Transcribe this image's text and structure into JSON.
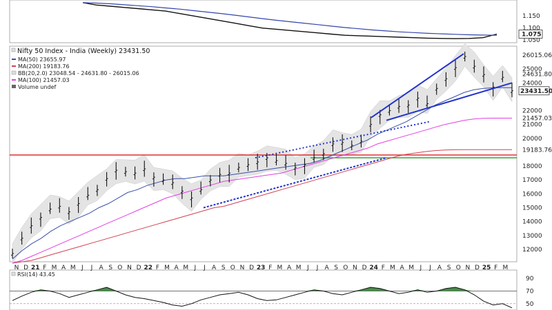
{
  "chart_data": [
    {
      "type": "line",
      "panel": "ratio",
      "title": "",
      "series": [
        {
          "name": "",
          "color": "#111111",
          "values": [
            1.205,
            1.195,
            1.19,
            1.185,
            1.18,
            1.175,
            1.17,
            1.16,
            1.15,
            1.14,
            1.13,
            1.12,
            1.11,
            1.1,
            1.095,
            1.09,
            1.085,
            1.08,
            1.075,
            1.07,
            1.068,
            1.066,
            1.064,
            1.062,
            1.06,
            1.058,
            1.057,
            1.056,
            1.057,
            1.06,
            1.075
          ]
        },
        {
          "name": "",
          "color": "#3344aa",
          "values": [
            1.205,
            1.203,
            1.2,
            1.196,
            1.192,
            1.188,
            1.183,
            1.178,
            1.172,
            1.166,
            1.16,
            1.153,
            1.146,
            1.139,
            1.132,
            1.126,
            1.12,
            1.114,
            1.108,
            1.102,
            1.097,
            1.092,
            1.088,
            1.084,
            1.081,
            1.078,
            1.076,
            1.074,
            1.072,
            1.071,
            1.07
          ]
        }
      ],
      "yticks": [
        "1.150",
        "1.100",
        "1.050"
      ],
      "ylim": [
        1.045,
        1.21
      ],
      "last_value": "1.075"
    },
    {
      "type": "line",
      "panel": "price",
      "title": "Nifty 50 Index - India (Weekly) 23431.50",
      "legend": [
        {
          "label": "MA(50) 23655.97",
          "color": "#3a4fa8"
        },
        {
          "label": "MA(200) 19183.76",
          "color": "#d04050"
        },
        {
          "label": "BB(20,2.0) 23048.54 - 24631.80 - 26015.06",
          "color": "#999999"
        },
        {
          "label": "MA(100) 21457.03",
          "color": "#e040e0"
        },
        {
          "label": "Volume undef",
          "color": "#555555"
        }
      ],
      "yticks": [
        "26015.06",
        "25000",
        "24631.80",
        "24000",
        "23431.50",
        "22000",
        "21457.03",
        "21000",
        "20000",
        "19183.76",
        "18000",
        "17000",
        "16000",
        "15000",
        "14000",
        "13000",
        "12000"
      ],
      "ylim": [
        11200,
        26500
      ],
      "price_tag": "23431.50",
      "x_labels": [
        "N",
        "D",
        "21",
        "F",
        "M",
        "A",
        "M",
        "J",
        "J",
        "A",
        "S",
        "O",
        "N",
        "D",
        "22",
        "F",
        "M",
        "A",
        "M",
        "J",
        "J",
        "A",
        "S",
        "O",
        "N",
        "D",
        "23",
        "F",
        "M",
        "A",
        "M",
        "J",
        "J",
        "A",
        "S",
        "O",
        "N",
        "D",
        "24",
        "F",
        "M",
        "A",
        "M",
        "J",
        "J",
        "A",
        "S",
        "O",
        "N",
        "D",
        "25",
        "F",
        "M"
      ],
      "x_start": "2020-11",
      "price": [
        11700,
        12800,
        13700,
        14300,
        14900,
        15100,
        14700,
        15300,
        15900,
        16300,
        17100,
        17700,
        17600,
        17500,
        17800,
        17200,
        17000,
        16800,
        16200,
        15700,
        16300,
        17000,
        17400,
        17500,
        17900,
        18100,
        18300,
        18600,
        18400,
        18200,
        17900,
        18100,
        18600,
        18900,
        19600,
        19700,
        19500,
        19800,
        21000,
        21700,
        22000,
        22300,
        22400,
        22900,
        22500,
        23600,
        24300,
        25100,
        25900,
        25200,
        24600,
        23700,
        24400,
        23431
      ],
      "ma50": [
        11300,
        11900,
        12400,
        12800,
        13300,
        13700,
        14000,
        14300,
        14600,
        15000,
        15300,
        15700,
        16100,
        16300,
        16600,
        16800,
        17000,
        17100,
        17100,
        17200,
        17300,
        17300,
        17300,
        17400,
        17500,
        17600,
        17700,
        17800,
        17900,
        18000,
        18100,
        18200,
        18400,
        18700,
        19000,
        19300,
        19600,
        19900,
        20300,
        20600,
        20900,
        21200,
        21600,
        22000,
        22400,
        22700,
        23000,
        23300,
        23500,
        23600,
        23650,
        23656,
        23656
      ],
      "ma100": [
        11000,
        11200,
        11500,
        11800,
        12100,
        12400,
        12700,
        13000,
        13300,
        13600,
        13900,
        14200,
        14500,
        14800,
        15100,
        15400,
        15700,
        15900,
        16100,
        16300,
        16500,
        16700,
        16900,
        17000,
        17100,
        17200,
        17300,
        17400,
        17500,
        17700,
        17900,
        18100,
        18300,
        18500,
        18700,
        18900,
        19100,
        19300,
        19600,
        19800,
        20000,
        20200,
        20400,
        20600,
        20800,
        21000,
        21150,
        21300,
        21400,
        21450,
        21457,
        21457,
        21457
      ],
      "ma200": [
        11000,
        11100,
        11200,
        11400,
        11600,
        11800,
        12000,
        12200,
        12400,
        12600,
        12800,
        13000,
        13200,
        13400,
        13600,
        13800,
        14000,
        14200,
        14400,
        14600,
        14800,
        15000,
        15100,
        15300,
        15500,
        15700,
        15900,
        16100,
        16300,
        16500,
        16700,
        16900,
        17100,
        17300,
        17500,
        17700,
        17900,
        18100,
        18300,
        18500,
        18700,
        18850,
        18950,
        19050,
        19120,
        19160,
        19180,
        19183,
        19183,
        19183,
        19183,
        19183,
        19183
      ],
      "support_level": 18800,
      "resistance_level": 18600
    },
    {
      "type": "line",
      "panel": "rsi",
      "title": "RSI(14) 43.45",
      "yticks": [
        "90",
        "70",
        "50"
      ],
      "ylim": [
        40,
        100
      ],
      "overbought": 70,
      "values": [
        55,
        62,
        68,
        72,
        70,
        66,
        60,
        64,
        68,
        72,
        76,
        70,
        64,
        60,
        58,
        55,
        52,
        48,
        46,
        50,
        56,
        60,
        64,
        66,
        68,
        64,
        58,
        55,
        56,
        60,
        64,
        68,
        72,
        70,
        66,
        64,
        68,
        72,
        76,
        74,
        70,
        66,
        68,
        72,
        68,
        70,
        74,
        76,
        72,
        64,
        54,
        48,
        50,
        43.45
      ]
    }
  ]
}
